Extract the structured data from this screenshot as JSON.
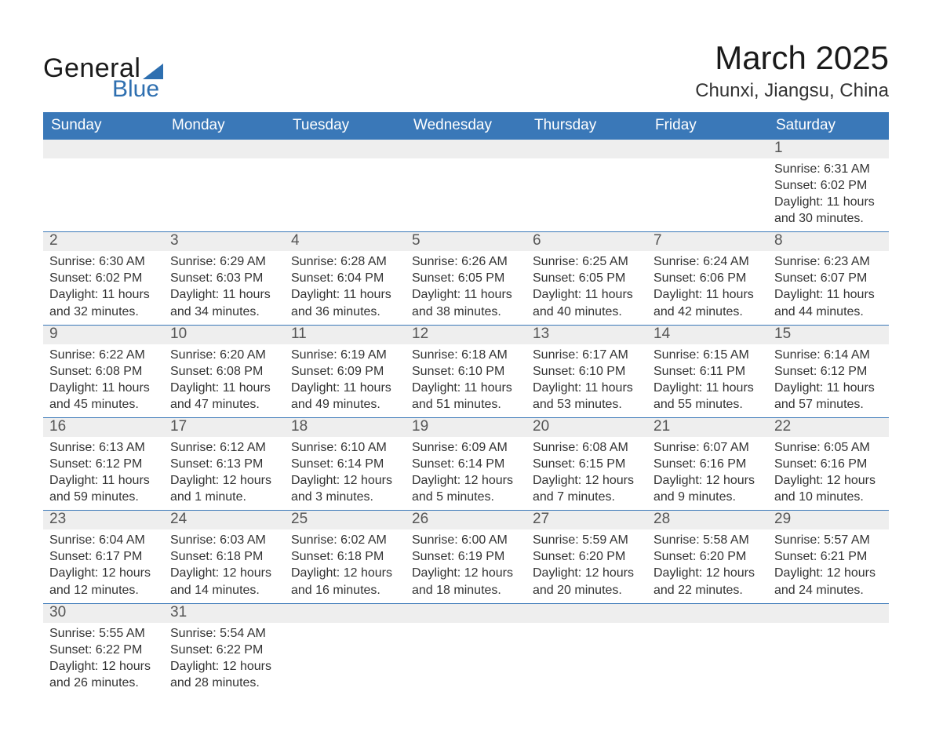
{
  "logo": {
    "word1": "General",
    "word2": "Blue",
    "shape_color": "#2e6fb0"
  },
  "title": "March 2025",
  "subtitle": "Chunxi, Jiangsu, China",
  "colors": {
    "header_bg": "#3a78b8",
    "header_text": "#ffffff",
    "band_bg": "#eeeeee",
    "band_text": "#555555",
    "body_text": "#333333",
    "row_divider": "#3a78b8",
    "page_bg": "#ffffff"
  },
  "typography": {
    "title_fontsize": 42,
    "subtitle_fontsize": 24,
    "weekday_fontsize": 19,
    "daynum_fontsize": 19,
    "body_fontsize": 16
  },
  "weekdays": [
    "Sunday",
    "Monday",
    "Tuesday",
    "Wednesday",
    "Thursday",
    "Friday",
    "Saturday"
  ],
  "weeks": [
    [
      {
        "empty": true
      },
      {
        "empty": true
      },
      {
        "empty": true
      },
      {
        "empty": true
      },
      {
        "empty": true
      },
      {
        "empty": true
      },
      {
        "daynum": "1",
        "sunrise": "Sunrise: 6:31 AM",
        "sunset": "Sunset: 6:02 PM",
        "daylight": "Daylight: 11 hours and 30 minutes."
      }
    ],
    [
      {
        "daynum": "2",
        "sunrise": "Sunrise: 6:30 AM",
        "sunset": "Sunset: 6:02 PM",
        "daylight": "Daylight: 11 hours and 32 minutes."
      },
      {
        "daynum": "3",
        "sunrise": "Sunrise: 6:29 AM",
        "sunset": "Sunset: 6:03 PM",
        "daylight": "Daylight: 11 hours and 34 minutes."
      },
      {
        "daynum": "4",
        "sunrise": "Sunrise: 6:28 AM",
        "sunset": "Sunset: 6:04 PM",
        "daylight": "Daylight: 11 hours and 36 minutes."
      },
      {
        "daynum": "5",
        "sunrise": "Sunrise: 6:26 AM",
        "sunset": "Sunset: 6:05 PM",
        "daylight": "Daylight: 11 hours and 38 minutes."
      },
      {
        "daynum": "6",
        "sunrise": "Sunrise: 6:25 AM",
        "sunset": "Sunset: 6:05 PM",
        "daylight": "Daylight: 11 hours and 40 minutes."
      },
      {
        "daynum": "7",
        "sunrise": "Sunrise: 6:24 AM",
        "sunset": "Sunset: 6:06 PM",
        "daylight": "Daylight: 11 hours and 42 minutes."
      },
      {
        "daynum": "8",
        "sunrise": "Sunrise: 6:23 AM",
        "sunset": "Sunset: 6:07 PM",
        "daylight": "Daylight: 11 hours and 44 minutes."
      }
    ],
    [
      {
        "daynum": "9",
        "sunrise": "Sunrise: 6:22 AM",
        "sunset": "Sunset: 6:08 PM",
        "daylight": "Daylight: 11 hours and 45 minutes."
      },
      {
        "daynum": "10",
        "sunrise": "Sunrise: 6:20 AM",
        "sunset": "Sunset: 6:08 PM",
        "daylight": "Daylight: 11 hours and 47 minutes."
      },
      {
        "daynum": "11",
        "sunrise": "Sunrise: 6:19 AM",
        "sunset": "Sunset: 6:09 PM",
        "daylight": "Daylight: 11 hours and 49 minutes."
      },
      {
        "daynum": "12",
        "sunrise": "Sunrise: 6:18 AM",
        "sunset": "Sunset: 6:10 PM",
        "daylight": "Daylight: 11 hours and 51 minutes."
      },
      {
        "daynum": "13",
        "sunrise": "Sunrise: 6:17 AM",
        "sunset": "Sunset: 6:10 PM",
        "daylight": "Daylight: 11 hours and 53 minutes."
      },
      {
        "daynum": "14",
        "sunrise": "Sunrise: 6:15 AM",
        "sunset": "Sunset: 6:11 PM",
        "daylight": "Daylight: 11 hours and 55 minutes."
      },
      {
        "daynum": "15",
        "sunrise": "Sunrise: 6:14 AM",
        "sunset": "Sunset: 6:12 PM",
        "daylight": "Daylight: 11 hours and 57 minutes."
      }
    ],
    [
      {
        "daynum": "16",
        "sunrise": "Sunrise: 6:13 AM",
        "sunset": "Sunset: 6:12 PM",
        "daylight": "Daylight: 11 hours and 59 minutes."
      },
      {
        "daynum": "17",
        "sunrise": "Sunrise: 6:12 AM",
        "sunset": "Sunset: 6:13 PM",
        "daylight": "Daylight: 12 hours and 1 minute."
      },
      {
        "daynum": "18",
        "sunrise": "Sunrise: 6:10 AM",
        "sunset": "Sunset: 6:14 PM",
        "daylight": "Daylight: 12 hours and 3 minutes."
      },
      {
        "daynum": "19",
        "sunrise": "Sunrise: 6:09 AM",
        "sunset": "Sunset: 6:14 PM",
        "daylight": "Daylight: 12 hours and 5 minutes."
      },
      {
        "daynum": "20",
        "sunrise": "Sunrise: 6:08 AM",
        "sunset": "Sunset: 6:15 PM",
        "daylight": "Daylight: 12 hours and 7 minutes."
      },
      {
        "daynum": "21",
        "sunrise": "Sunrise: 6:07 AM",
        "sunset": "Sunset: 6:16 PM",
        "daylight": "Daylight: 12 hours and 9 minutes."
      },
      {
        "daynum": "22",
        "sunrise": "Sunrise: 6:05 AM",
        "sunset": "Sunset: 6:16 PM",
        "daylight": "Daylight: 12 hours and 10 minutes."
      }
    ],
    [
      {
        "daynum": "23",
        "sunrise": "Sunrise: 6:04 AM",
        "sunset": "Sunset: 6:17 PM",
        "daylight": "Daylight: 12 hours and 12 minutes."
      },
      {
        "daynum": "24",
        "sunrise": "Sunrise: 6:03 AM",
        "sunset": "Sunset: 6:18 PM",
        "daylight": "Daylight: 12 hours and 14 minutes."
      },
      {
        "daynum": "25",
        "sunrise": "Sunrise: 6:02 AM",
        "sunset": "Sunset: 6:18 PM",
        "daylight": "Daylight: 12 hours and 16 minutes."
      },
      {
        "daynum": "26",
        "sunrise": "Sunrise: 6:00 AM",
        "sunset": "Sunset: 6:19 PM",
        "daylight": "Daylight: 12 hours and 18 minutes."
      },
      {
        "daynum": "27",
        "sunrise": "Sunrise: 5:59 AM",
        "sunset": "Sunset: 6:20 PM",
        "daylight": "Daylight: 12 hours and 20 minutes."
      },
      {
        "daynum": "28",
        "sunrise": "Sunrise: 5:58 AM",
        "sunset": "Sunset: 6:20 PM",
        "daylight": "Daylight: 12 hours and 22 minutes."
      },
      {
        "daynum": "29",
        "sunrise": "Sunrise: 5:57 AM",
        "sunset": "Sunset: 6:21 PM",
        "daylight": "Daylight: 12 hours and 24 minutes."
      }
    ],
    [
      {
        "daynum": "30",
        "sunrise": "Sunrise: 5:55 AM",
        "sunset": "Sunset: 6:22 PM",
        "daylight": "Daylight: 12 hours and 26 minutes."
      },
      {
        "daynum": "31",
        "sunrise": "Sunrise: 5:54 AM",
        "sunset": "Sunset: 6:22 PM",
        "daylight": "Daylight: 12 hours and 28 minutes."
      },
      {
        "empty": true
      },
      {
        "empty": true
      },
      {
        "empty": true
      },
      {
        "empty": true
      },
      {
        "empty": true
      }
    ]
  ]
}
